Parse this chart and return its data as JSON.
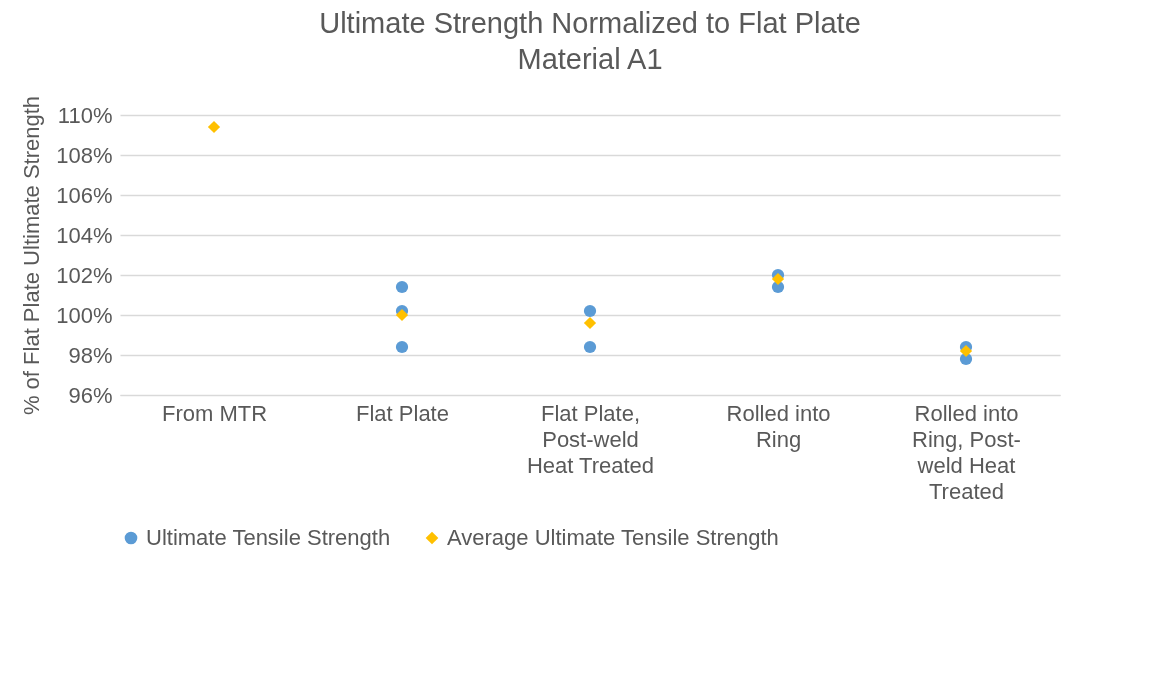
{
  "chart_data": {
    "type": "scatter",
    "title": "Ultimate Strength Normalized to Flat Plate Material A1",
    "ylabel": "% of Flat Plate Ultimate Strength",
    "categories": [
      "From MTR",
      "Flat Plate",
      "Flat Plate, Post-weld Heat Treated",
      "Rolled into Ring",
      "Rolled into Ring, Post-weld Heat Treated"
    ],
    "series": [
      {
        "name": "Ultimate Tensile Strength",
        "color": "#5b9bd5",
        "marker": "circle",
        "x": [
          "Flat Plate",
          "Flat Plate",
          "Flat Plate",
          "Flat Plate, Post-weld Heat Treated",
          "Flat Plate, Post-weld Heat Treated",
          "Rolled into Ring",
          "Rolled into Ring",
          "Rolled into Ring, Post-weld Heat Treated",
          "Rolled into Ring, Post-weld Heat Treated"
        ],
        "values": [
          101.4,
          100.2,
          98.4,
          100.2,
          98.4,
          102.0,
          101.4,
          98.4,
          97.8
        ]
      },
      {
        "name": "Average Ultimate Tensile Strength",
        "color": "#ffc000",
        "marker": "diamond",
        "x": [
          "From MTR",
          "Flat Plate",
          "Flat Plate, Post-weld Heat Treated",
          "Rolled into Ring",
          "Rolled into Ring, Post-weld Heat Treated"
        ],
        "values": [
          109.4,
          100.0,
          99.6,
          101.8,
          98.2
        ]
      }
    ],
    "ylim": [
      96,
      110
    ],
    "yticks": [
      {
        "value": 96,
        "label": "96%"
      },
      {
        "value": 98,
        "label": "98%"
      },
      {
        "value": 100,
        "label": "100%"
      },
      {
        "value": 102,
        "label": "102%"
      },
      {
        "value": 104,
        "label": "104%"
      },
      {
        "value": 106,
        "label": "106%"
      },
      {
        "value": 108,
        "label": "108%"
      },
      {
        "value": 110,
        "label": "110%"
      }
    ],
    "grid": "y",
    "legend": "bottom"
  }
}
